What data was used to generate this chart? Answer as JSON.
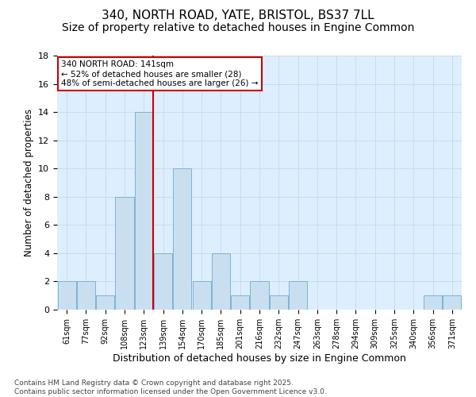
{
  "title": "340, NORTH ROAD, YATE, BRISTOL, BS37 7LL",
  "subtitle": "Size of property relative to detached houses in Engine Common",
  "xlabel": "Distribution of detached houses by size in Engine Common",
  "ylabel": "Number of detached properties",
  "categories": [
    "61sqm",
    "77sqm",
    "92sqm",
    "108sqm",
    "123sqm",
    "139sqm",
    "154sqm",
    "170sqm",
    "185sqm",
    "201sqm",
    "216sqm",
    "232sqm",
    "247sqm",
    "263sqm",
    "278sqm",
    "294sqm",
    "309sqm",
    "325sqm",
    "340sqm",
    "356sqm",
    "371sqm"
  ],
  "values": [
    2,
    2,
    1,
    8,
    14,
    4,
    10,
    2,
    4,
    1,
    2,
    1,
    2,
    0,
    0,
    0,
    0,
    0,
    0,
    1,
    1
  ],
  "bar_color": "#c9dff0",
  "bar_edge_color": "#7ab4d4",
  "vline_x_pos": 4.5,
  "vline_color": "#cc0000",
  "annotation_text": "340 NORTH ROAD: 141sqm\n← 52% of detached houses are smaller (28)\n48% of semi-detached houses are larger (26) →",
  "annotation_box_color": "#ffffff",
  "annotation_box_edge": "#cc0000",
  "annotation_fontsize": 7.5,
  "ylim": [
    0,
    18
  ],
  "yticks": [
    0,
    2,
    4,
    6,
    8,
    10,
    12,
    14,
    16,
    18
  ],
  "grid_color": "#c8d8e8",
  "background_color": "#ddeeff",
  "footer": "Contains HM Land Registry data © Crown copyright and database right 2025.\nContains public sector information licensed under the Open Government Licence v3.0.",
  "title_fontsize": 11,
  "subtitle_fontsize": 10,
  "xlabel_fontsize": 9,
  "ylabel_fontsize": 8.5,
  "footer_fontsize": 6.5
}
